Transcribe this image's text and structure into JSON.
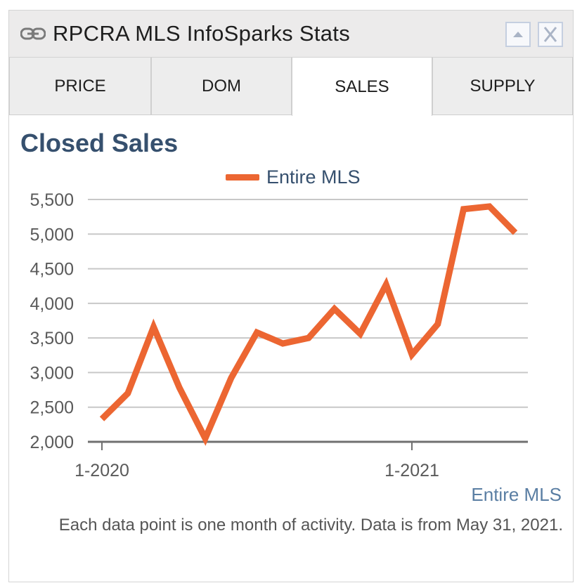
{
  "window": {
    "title": "RPCRA MLS InfoSparks Stats",
    "link_icon": "link-icon",
    "collapse_icon": "triangle-up-icon",
    "close_icon": "close-icon"
  },
  "tabs": [
    {
      "label": "PRICE",
      "active": false
    },
    {
      "label": "DOM",
      "active": false
    },
    {
      "label": "SALES",
      "active": true
    },
    {
      "label": "SUPPLY",
      "active": false
    }
  ],
  "source_label": "Entire MLS",
  "footnote": "Each data point is one month of activity. Data is from May 31, 2021.",
  "colors": {
    "series": "#ec6632",
    "title": "#36506e",
    "grid": "#c8c8c8",
    "axis": "#707070"
  },
  "chart_data": {
    "type": "line",
    "title": "Closed Sales",
    "xlabel": "",
    "ylabel": "",
    "x": [
      "2020-01",
      "2020-02",
      "2020-03",
      "2020-04",
      "2020-05",
      "2020-06",
      "2020-07",
      "2020-08",
      "2020-09",
      "2020-10",
      "2020-11",
      "2020-12",
      "2021-01",
      "2021-02",
      "2021-03",
      "2021-04",
      "2021-05"
    ],
    "x_tick_labels": [
      {
        "x": "2020-01",
        "label": "1-2020"
      },
      {
        "x": "2021-01",
        "label": "1-2021"
      }
    ],
    "y_ticks": [
      2000,
      2500,
      3000,
      3500,
      4000,
      4500,
      5000,
      5500
    ],
    "y_tick_labels": [
      "2,000",
      "2,500",
      "3,000",
      "3,500",
      "4,000",
      "4,500",
      "5,000",
      "5,500"
    ],
    "ylim": [
      2000,
      5500
    ],
    "grid": true,
    "legend": "top-center",
    "series": [
      {
        "name": "Entire MLS",
        "values": [
          2330,
          2700,
          3660,
          2780,
          2050,
          2920,
          3580,
          3420,
          3500,
          3920,
          3560,
          4270,
          3260,
          3700,
          5360,
          5400,
          5020
        ]
      }
    ]
  }
}
